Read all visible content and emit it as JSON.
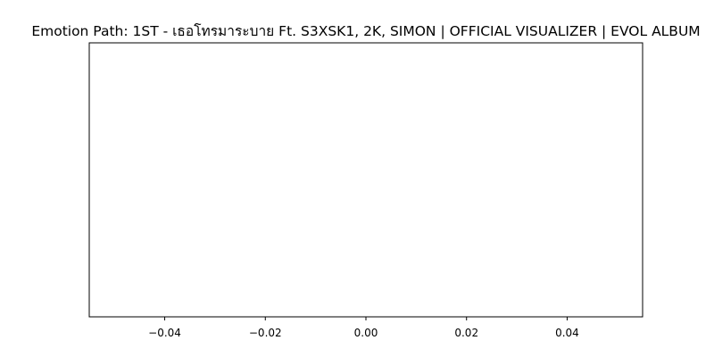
{
  "chart_data": {
    "type": "line",
    "title": "Emotion Path: 1ST - เธอโทรมาระบาย Ft. S3XSK1, 2K, SIMON | OFFICIAL VISUALIZER  | EVOL ALBUM",
    "xlabel": "",
    "ylabel": "",
    "xlim": [
      -0.055,
      0.055
    ],
    "x_ticks": [
      -0.04,
      -0.02,
      0.0,
      0.02,
      0.04
    ],
    "x_tick_labels": [
      "−0.04",
      "−0.02",
      "0.00",
      "0.02",
      "0.04"
    ],
    "y_ticks": [],
    "grid": false,
    "legend": "none",
    "series": [
      {
        "x": [],
        "y": []
      }
    ],
    "colors": {
      "axes_edge": "#000000",
      "background": "#ffffff",
      "text": "#000000"
    }
  }
}
